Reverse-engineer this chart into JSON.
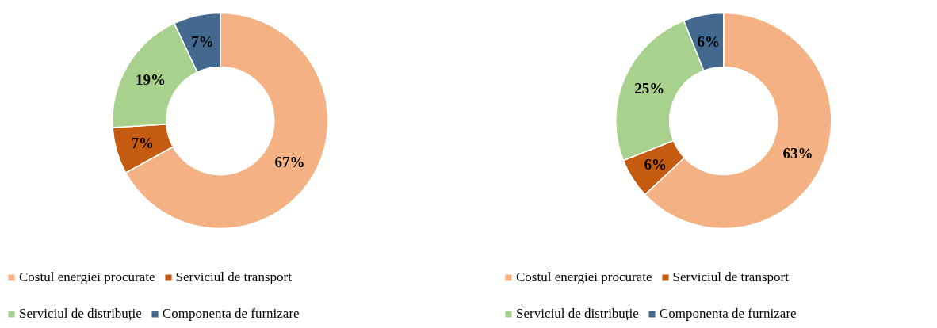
{
  "chart_data": [
    {
      "type": "donut",
      "categories": [
        "Costul energiei procurate",
        "Serviciul de transport",
        "Serviciul de distribuție",
        "Componenta de furnizare"
      ],
      "values": [
        67,
        7,
        19,
        7
      ],
      "colors": [
        "#f4b183",
        "#c55a11",
        "#a9d18e",
        "#44698f"
      ],
      "value_labels": [
        "67%",
        "7%",
        "19%",
        "7%"
      ],
      "legend": "bottom"
    },
    {
      "type": "donut",
      "categories": [
        "Costul energiei procurate",
        "Serviciul de transport",
        "Serviciul de distribuție",
        "Componenta de furnizare"
      ],
      "values": [
        63,
        6,
        25,
        6
      ],
      "colors": [
        "#f4b183",
        "#c55a11",
        "#a9d18e",
        "#44698f"
      ],
      "value_labels": [
        "63%",
        "6%",
        "25%",
        "6%"
      ],
      "legend": "bottom"
    }
  ]
}
